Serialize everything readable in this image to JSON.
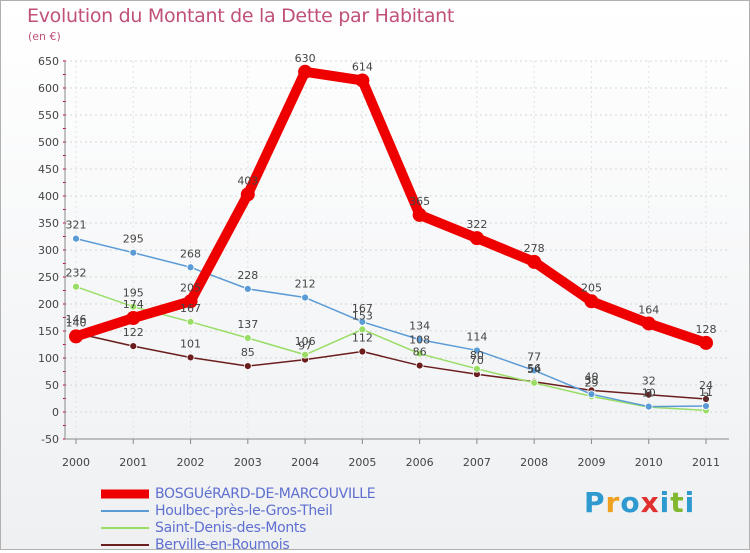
{
  "chart_data": {
    "type": "line",
    "title": "Evolution du Montant de la Dette par Habitant",
    "subtitle": "(en €)",
    "ylim": [
      -50,
      650
    ],
    "yticks": [
      -50,
      0,
      50,
      100,
      150,
      200,
      250,
      300,
      350,
      400,
      450,
      500,
      550,
      600,
      650
    ],
    "categories": [
      "2000",
      "2001",
      "2002",
      "2003",
      "2004",
      "2005",
      "2006",
      "2007",
      "2008",
      "2009",
      "2010",
      "2011"
    ],
    "series": [
      {
        "name": "BOSGUéRARD-DE-MARCOUVILLE",
        "color": "#ee0000",
        "values": [
          140,
          174,
          205,
          403,
          630,
          614,
          365,
          322,
          278,
          205,
          164,
          128
        ]
      },
      {
        "name": "Houlbec-près-le-Gros-Theil",
        "color": "#5b9bd5",
        "values": [
          321,
          295,
          268,
          228,
          212,
          167,
          134,
          114,
          77,
          33,
          10,
          11
        ]
      },
      {
        "name": "Saint-Denis-des-Monts",
        "color": "#99dd66",
        "values": [
          232,
          195,
          167,
          137,
          106,
          153,
          108,
          80,
          54,
          29,
          9,
          3
        ]
      },
      {
        "name": "Berville-en-Roumois",
        "color": "#6b1e1e",
        "values": [
          146,
          122,
          101,
          85,
          97,
          112,
          86,
          70,
          56,
          40,
          32,
          24
        ]
      }
    ]
  },
  "logo": {
    "letters": [
      "P",
      "r",
      "o",
      "x",
      "i",
      "t",
      "i"
    ]
  }
}
